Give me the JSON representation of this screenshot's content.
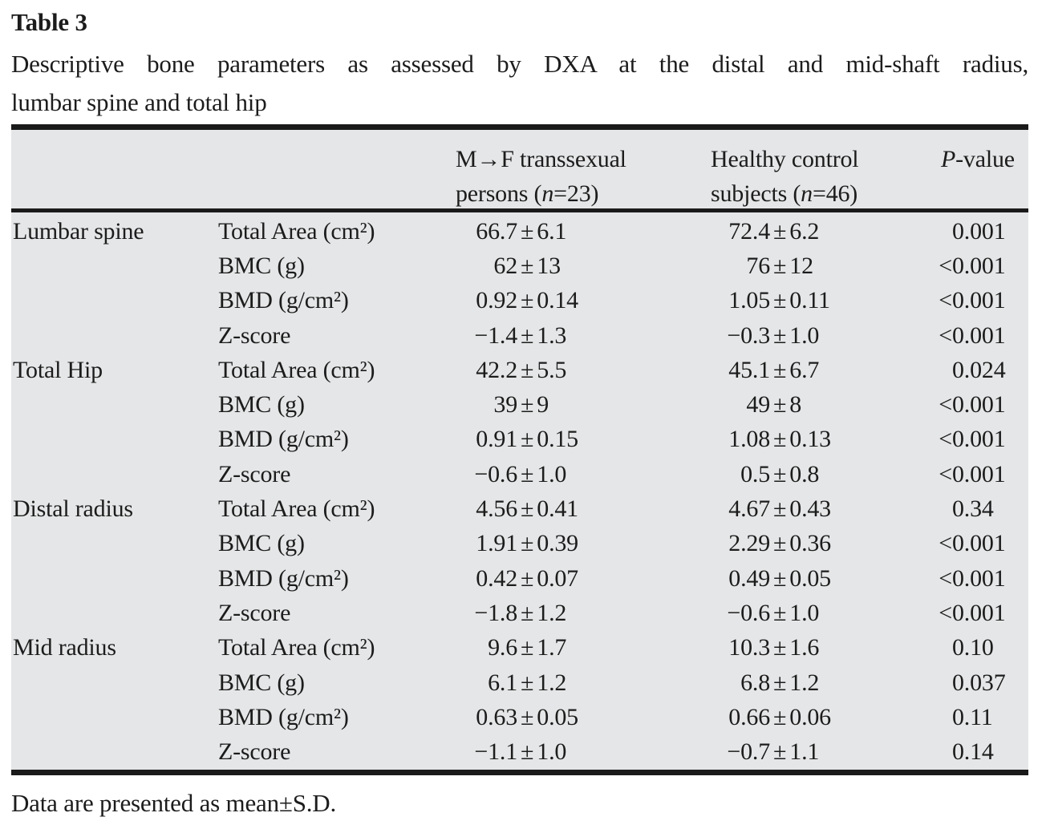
{
  "title": "Table 3",
  "caption": {
    "line1": "Descriptive bone parameters as assessed by DXA at the distal and mid-shaft radius,",
    "line2": "lumbar spine and total hip"
  },
  "table": {
    "pm": "±",
    "header": {
      "mf_line1": "M→F transsexual",
      "mf_line2_pre": "persons (",
      "mf_line2_n": "n",
      "mf_line2_post": "=23)",
      "hc_line1": "Healthy control",
      "hc_line2_pre": "subjects (",
      "hc_line2_n": "n",
      "hc_line2_post": "=46)",
      "p_italic": "P",
      "p_rest": "-value"
    },
    "rows": [
      {
        "site": "Lumbar spine",
        "param": "Total Area (cm²)",
        "mf_mean": "66.7",
        "mf_sd": "6.1",
        "hc_mean": "72.4",
        "hc_sd": "6.2",
        "p_lt": "",
        "p_num": "0.001"
      },
      {
        "site": "",
        "param": "BMC (g)",
        "mf_mean": "62",
        "mf_sd": "13",
        "hc_mean": "76",
        "hc_sd": "12",
        "p_lt": "<",
        "p_num": "0.001"
      },
      {
        "site": "",
        "param": "BMD (g/cm²)",
        "mf_mean": "0.92",
        "mf_sd": "0.14",
        "hc_mean": "1.05",
        "hc_sd": "0.11",
        "p_lt": "<",
        "p_num": "0.001"
      },
      {
        "site": "",
        "param": "Z-score",
        "mf_mean": "−1.4",
        "mf_sd": "1.3",
        "hc_mean": "−0.3",
        "hc_sd": "1.0",
        "p_lt": "<",
        "p_num": "0.001"
      },
      {
        "site": "Total Hip",
        "param": "Total Area (cm²)",
        "mf_mean": "42.2",
        "mf_sd": "5.5",
        "hc_mean": "45.1",
        "hc_sd": "6.7",
        "p_lt": "",
        "p_num": "0.024"
      },
      {
        "site": "",
        "param": "BMC (g)",
        "mf_mean": "39",
        "mf_sd": "9",
        "hc_mean": "49",
        "hc_sd": "8",
        "p_lt": "<",
        "p_num": "0.001"
      },
      {
        "site": "",
        "param": "BMD (g/cm²)",
        "mf_mean": "0.91",
        "mf_sd": "0.15",
        "hc_mean": "1.08",
        "hc_sd": "0.13",
        "p_lt": "<",
        "p_num": "0.001"
      },
      {
        "site": "",
        "param": "Z-score",
        "mf_mean": "−0.6",
        "mf_sd": "1.0",
        "hc_mean": "0.5",
        "hc_sd": "0.8",
        "p_lt": "<",
        "p_num": "0.001"
      },
      {
        "site": "Distal radius",
        "param": "Total Area (cm²)",
        "mf_mean": "4.56",
        "mf_sd": "0.41",
        "hc_mean": "4.67",
        "hc_sd": "0.43",
        "p_lt": "",
        "p_num": "0.34"
      },
      {
        "site": "",
        "param": "BMC (g)",
        "mf_mean": "1.91",
        "mf_sd": "0.39",
        "hc_mean": "2.29",
        "hc_sd": "0.36",
        "p_lt": "<",
        "p_num": "0.001"
      },
      {
        "site": "",
        "param": "BMD (g/cm²)",
        "mf_mean": "0.42",
        "mf_sd": "0.07",
        "hc_mean": "0.49",
        "hc_sd": "0.05",
        "p_lt": "<",
        "p_num": "0.001"
      },
      {
        "site": "",
        "param": "Z-score",
        "mf_mean": "−1.8",
        "mf_sd": "1.2",
        "hc_mean": "−0.6",
        "hc_sd": "1.0",
        "p_lt": "<",
        "p_num": "0.001"
      },
      {
        "site": "Mid radius",
        "param": "Total Area (cm²)",
        "mf_mean": "9.6",
        "mf_sd": "1.7",
        "hc_mean": "10.3",
        "hc_sd": "1.6",
        "p_lt": "",
        "p_num": "0.10"
      },
      {
        "site": "",
        "param": "BMC (g)",
        "mf_mean": "6.1",
        "mf_sd": "1.2",
        "hc_mean": "6.8",
        "hc_sd": "1.2",
        "p_lt": "",
        "p_num": "0.037"
      },
      {
        "site": "",
        "param": "BMD (g/cm²)",
        "mf_mean": "0.63",
        "mf_sd": "0.05",
        "hc_mean": "0.66",
        "hc_sd": "0.06",
        "p_lt": "",
        "p_num": "0.11"
      },
      {
        "site": "",
        "param": "Z-score",
        "mf_mean": "−1.1",
        "mf_sd": "1.0",
        "hc_mean": "−0.7",
        "hc_sd": "1.1",
        "p_lt": "",
        "p_num": "0.14"
      }
    ]
  },
  "footnote": "Data are presented as mean±S.D.",
  "colors": {
    "table_background": "#e5e6e7",
    "rule": "#1a1a1a",
    "text": "#1c1c1c",
    "page_background": "#ffffff"
  }
}
